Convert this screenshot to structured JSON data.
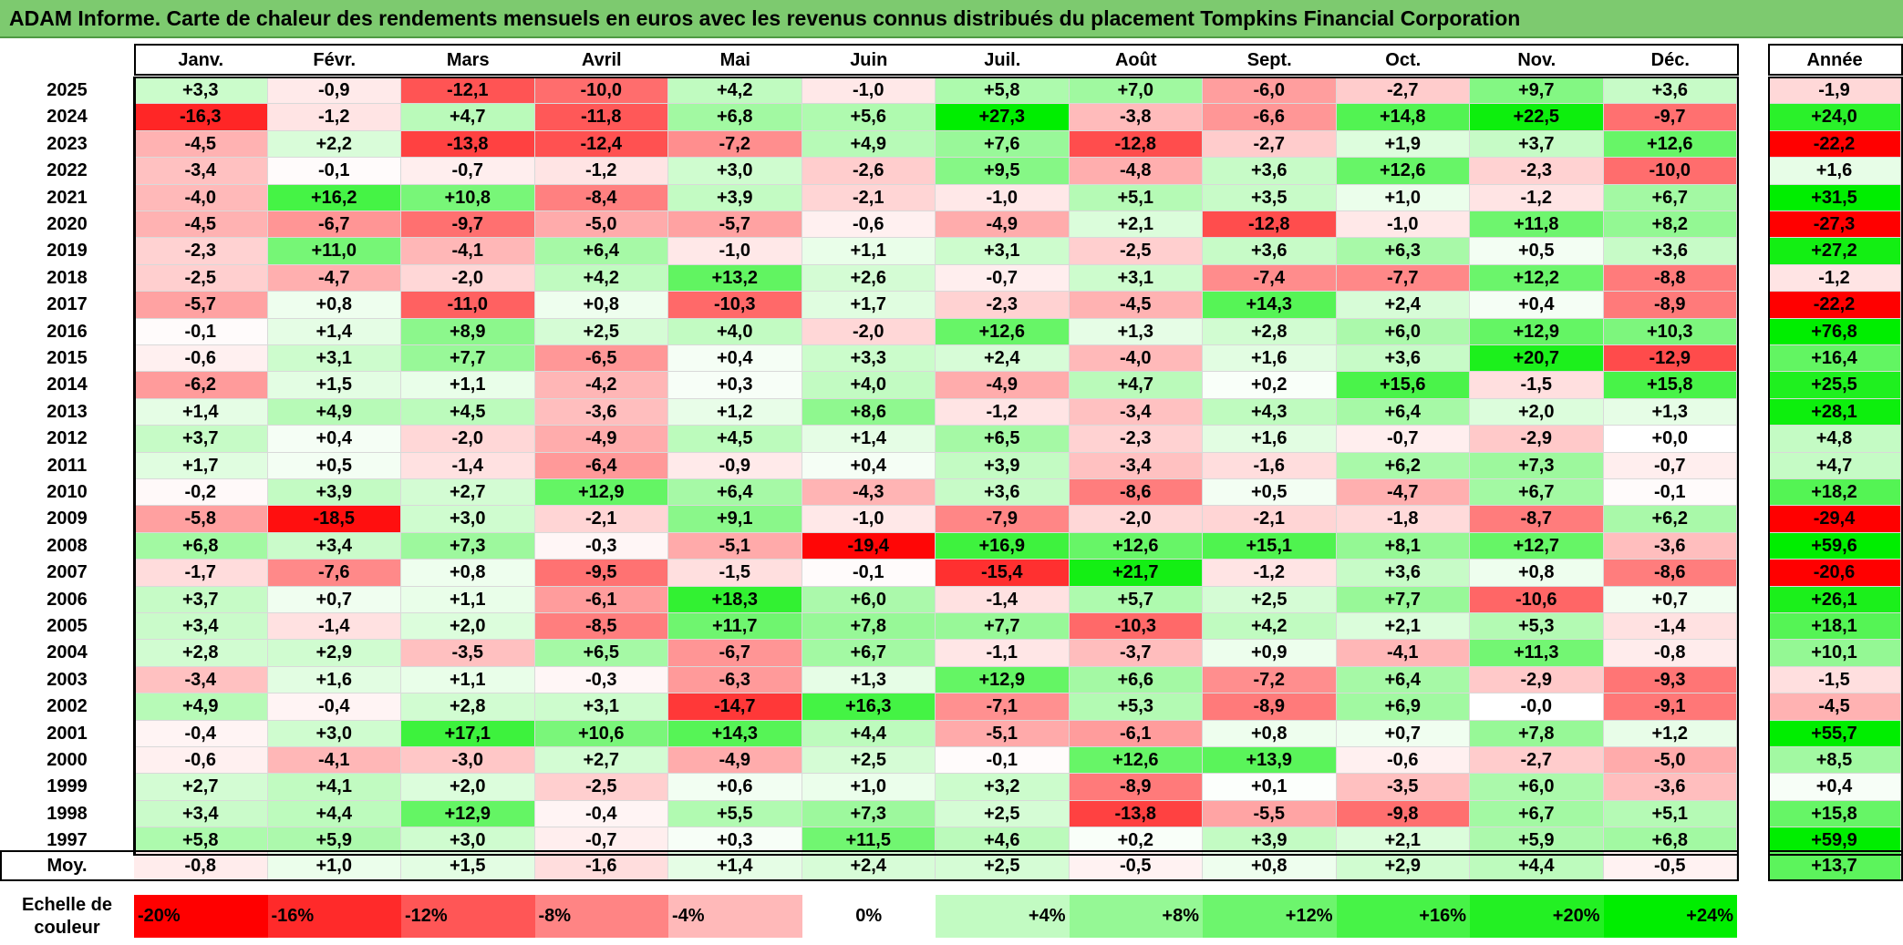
{
  "title": "ADAM Informe. Carte de chaleur des rendements mensuels en euros avec les revenus connus distribués du placement Tompkins Financial Corporation",
  "colors": {
    "title_bg": "#7dca6f",
    "neg_strong": "#ff0000",
    "pos_strong": "#00ee00",
    "neutral": "#ffffff"
  },
  "chart_data": {
    "type": "heatmap",
    "title": "ADAM Informe. Carte de chaleur des rendements mensuels en euros avec les revenus connus distribués du placement Tompkins Financial Corporation",
    "months": [
      "Janv.",
      "Févr.",
      "Mars",
      "Avril",
      "Mai",
      "Juin",
      "Juil.",
      "Août",
      "Sept.",
      "Oct.",
      "Nov.",
      "Déc."
    ],
    "year_header": "Année",
    "rows": [
      {
        "year": "2025",
        "values": [
          "+3,3",
          "-0,9",
          "-12,1",
          "-10,0",
          "+4,2",
          "-1,0",
          "+5,8",
          "+7,0",
          "-6,0",
          "-2,7",
          "+9,7",
          "+3,6"
        ],
        "annual": "-1,9"
      },
      {
        "year": "2024",
        "values": [
          "-16,3",
          "-1,2",
          "+4,7",
          "-11,8",
          "+6,8",
          "+5,6",
          "+27,3",
          "-3,8",
          "-6,6",
          "+14,8",
          "+22,5",
          "-9,7"
        ],
        "annual": "+24,0"
      },
      {
        "year": "2023",
        "values": [
          "-4,5",
          "+2,2",
          "-13,8",
          "-12,4",
          "-7,2",
          "+4,9",
          "+7,6",
          "-12,8",
          "-2,7",
          "+1,9",
          "+3,7",
          "+12,6"
        ],
        "annual": "-22,2"
      },
      {
        "year": "2022",
        "values": [
          "-3,4",
          "-0,1",
          "-0,7",
          "-1,2",
          "+3,0",
          "-2,6",
          "+9,5",
          "-4,8",
          "+3,6",
          "+12,6",
          "-2,3",
          "-10,0"
        ],
        "annual": "+1,6"
      },
      {
        "year": "2021",
        "values": [
          "-4,0",
          "+16,2",
          "+10,8",
          "-8,4",
          "+3,9",
          "-2,1",
          "-1,0",
          "+5,1",
          "+3,5",
          "+1,0",
          "-1,2",
          "+6,7"
        ],
        "annual": "+31,5"
      },
      {
        "year": "2020",
        "values": [
          "-4,5",
          "-6,7",
          "-9,7",
          "-5,0",
          "-5,7",
          "-0,6",
          "-4,9",
          "+2,1",
          "-12,8",
          "-1,0",
          "+11,8",
          "+8,2"
        ],
        "annual": "-27,3"
      },
      {
        "year": "2019",
        "values": [
          "-2,3",
          "+11,0",
          "-4,1",
          "+6,4",
          "-1,0",
          "+1,1",
          "+3,1",
          "-2,5",
          "+3,6",
          "+6,3",
          "+0,5",
          "+3,6"
        ],
        "annual": "+27,2"
      },
      {
        "year": "2018",
        "values": [
          "-2,5",
          "-4,7",
          "-2,0",
          "+4,2",
          "+13,2",
          "+2,6",
          "-0,7",
          "+3,1",
          "-7,4",
          "-7,7",
          "+12,2",
          "-8,8"
        ],
        "annual": "-1,2"
      },
      {
        "year": "2017",
        "values": [
          "-5,7",
          "+0,8",
          "-11,0",
          "+0,8",
          "-10,3",
          "+1,7",
          "-2,3",
          "-4,5",
          "+14,3",
          "+2,4",
          "+0,4",
          "-8,9"
        ],
        "annual": "-22,2"
      },
      {
        "year": "2016",
        "values": [
          "-0,1",
          "+1,4",
          "+8,9",
          "+2,5",
          "+4,0",
          "-2,0",
          "+12,6",
          "+1,3",
          "+2,8",
          "+6,0",
          "+12,9",
          "+10,3"
        ],
        "annual": "+76,8"
      },
      {
        "year": "2015",
        "values": [
          "-0,6",
          "+3,1",
          "+7,7",
          "-6,5",
          "+0,4",
          "+3,3",
          "+2,4",
          "-4,0",
          "+1,6",
          "+3,6",
          "+20,7",
          "-12,9"
        ],
        "annual": "+16,4"
      },
      {
        "year": "2014",
        "values": [
          "-6,2",
          "+1,5",
          "+1,1",
          "-4,2",
          "+0,3",
          "+4,0",
          "-4,9",
          "+4,7",
          "+0,2",
          "+15,6",
          "-1,5",
          "+15,8"
        ],
        "annual": "+25,5"
      },
      {
        "year": "2013",
        "values": [
          "+1,4",
          "+4,9",
          "+4,5",
          "-3,6",
          "+1,2",
          "+8,6",
          "-1,2",
          "-3,4",
          "+4,3",
          "+6,4",
          "+2,0",
          "+1,3"
        ],
        "annual": "+28,1"
      },
      {
        "year": "2012",
        "values": [
          "+3,7",
          "+0,4",
          "-2,0",
          "-4,9",
          "+4,5",
          "+1,4",
          "+6,5",
          "-2,3",
          "+1,6",
          "-0,7",
          "-2,9",
          "+0,0"
        ],
        "annual": "+4,8"
      },
      {
        "year": "2011",
        "values": [
          "+1,7",
          "+0,5",
          "-1,4",
          "-6,4",
          "-0,9",
          "+0,4",
          "+3,9",
          "-3,4",
          "-1,6",
          "+6,2",
          "+7,3",
          "-0,7"
        ],
        "annual": "+4,7"
      },
      {
        "year": "2010",
        "values": [
          "-0,2",
          "+3,9",
          "+2,7",
          "+12,9",
          "+6,4",
          "-4,3",
          "+3,6",
          "-8,6",
          "+0,5",
          "-4,7",
          "+6,7",
          "-0,1"
        ],
        "annual": "+18,2"
      },
      {
        "year": "2009",
        "values": [
          "-5,8",
          "-18,5",
          "+3,0",
          "-2,1",
          "+9,1",
          "-1,0",
          "-7,9",
          "-2,0",
          "-2,1",
          "-1,8",
          "-8,7",
          "+6,2"
        ],
        "annual": "-29,4"
      },
      {
        "year": "2008",
        "values": [
          "+6,8",
          "+3,4",
          "+7,3",
          "-0,3",
          "-5,1",
          "-19,4",
          "+16,9",
          "+12,6",
          "+15,1",
          "+8,1",
          "+12,7",
          "-3,6"
        ],
        "annual": "+59,6"
      },
      {
        "year": "2007",
        "values": [
          "-1,7",
          "-7,6",
          "+0,8",
          "-9,5",
          "-1,5",
          "-0,1",
          "-15,4",
          "+21,7",
          "-1,2",
          "+3,6",
          "+0,8",
          "-8,6"
        ],
        "annual": "-20,6"
      },
      {
        "year": "2006",
        "values": [
          "+3,7",
          "+0,7",
          "+1,1",
          "-6,1",
          "+18,3",
          "+6,0",
          "-1,4",
          "+5,7",
          "+2,5",
          "+7,7",
          "-10,6",
          "+0,7"
        ],
        "annual": "+26,1"
      },
      {
        "year": "2005",
        "values": [
          "+3,4",
          "-1,4",
          "+2,0",
          "-8,5",
          "+11,7",
          "+7,8",
          "+7,7",
          "-10,3",
          "+4,2",
          "+2,1",
          "+5,3",
          "-1,4"
        ],
        "annual": "+18,1"
      },
      {
        "year": "2004",
        "values": [
          "+2,8",
          "+2,9",
          "-3,5",
          "+6,5",
          "-6,7",
          "+6,7",
          "-1,1",
          "-3,7",
          "+0,9",
          "-4,1",
          "+11,3",
          "-0,8"
        ],
        "annual": "+10,1"
      },
      {
        "year": "2003",
        "values": [
          "-3,4",
          "+1,6",
          "+1,1",
          "-0,3",
          "-6,3",
          "+1,3",
          "+12,9",
          "+6,6",
          "-7,2",
          "+6,4",
          "-2,9",
          "-9,3"
        ],
        "annual": "-1,5"
      },
      {
        "year": "2002",
        "values": [
          "+4,9",
          "-0,4",
          "+2,8",
          "+3,1",
          "-14,7",
          "+16,3",
          "-7,1",
          "+5,3",
          "-8,9",
          "+6,9",
          "-0,0",
          "-9,1"
        ],
        "annual": "-4,5"
      },
      {
        "year": "2001",
        "values": [
          "-0,4",
          "+3,0",
          "+17,1",
          "+10,6",
          "+14,3",
          "+4,4",
          "-5,1",
          "-6,1",
          "+0,8",
          "+0,7",
          "+7,8",
          "+1,2"
        ],
        "annual": "+55,7"
      },
      {
        "year": "2000",
        "values": [
          "-0,6",
          "-4,1",
          "-3,0",
          "+2,7",
          "-4,9",
          "+2,5",
          "-0,1",
          "+12,6",
          "+13,9",
          "-0,6",
          "-2,7",
          "-5,0"
        ],
        "annual": "+8,5"
      },
      {
        "year": "1999",
        "values": [
          "+2,7",
          "+4,1",
          "+2,0",
          "-2,5",
          "+0,6",
          "+1,0",
          "+3,2",
          "-8,9",
          "+0,1",
          "-3,5",
          "+6,0",
          "-3,6"
        ],
        "annual": "+0,4"
      },
      {
        "year": "1998",
        "values": [
          "+3,4",
          "+4,4",
          "+12,9",
          "-0,4",
          "+5,5",
          "+7,3",
          "+2,5",
          "-13,8",
          "-5,5",
          "-9,8",
          "+6,7",
          "+5,1"
        ],
        "annual": "+15,8"
      },
      {
        "year": "1997",
        "values": [
          "+5,8",
          "+5,9",
          "+3,0",
          "-0,7",
          "+0,3",
          "+11,5",
          "+4,6",
          "+0,2",
          "+3,9",
          "+2,1",
          "+5,9",
          "+6,8"
        ],
        "annual": "+59,9"
      }
    ],
    "average": {
      "label": "Moy.",
      "values": [
        "-0,8",
        "+1,0",
        "+1,5",
        "-1,6",
        "+1,4",
        "+2,4",
        "+2,5",
        "-0,5",
        "+0,8",
        "+2,9",
        "+4,4",
        "-0,5"
      ],
      "annual": "+13,7"
    },
    "scale": {
      "label_line1": "Echelle de",
      "label_line2": "couleur",
      "stops": [
        {
          "label": "-20%",
          "value": -20
        },
        {
          "label": "-16%",
          "value": -16
        },
        {
          "label": "-12%",
          "value": -12
        },
        {
          "label": "-8%",
          "value": -8
        },
        {
          "label": "-4%",
          "value": -4
        },
        {
          "label": "0%",
          "value": 0
        },
        {
          "label": "+4%",
          "value": 4
        },
        {
          "label": "+8%",
          "value": 8
        },
        {
          "label": "+12%",
          "value": 12
        },
        {
          "label": "+16%",
          "value": 16
        },
        {
          "label": "+20%",
          "value": 20
        },
        {
          "label": "+24%",
          "value": 24
        }
      ]
    }
  }
}
